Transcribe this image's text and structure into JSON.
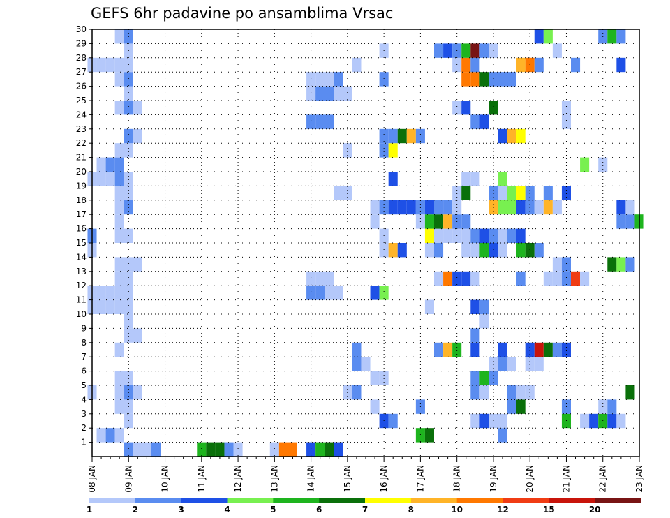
{
  "chart_data": {
    "type": "heatmap",
    "title": "GEFS 6hr padavine po ansamblima Vrsac",
    "xlabel": "",
    "ylabel": "",
    "x_start": "08 JAN 00Z",
    "x_end": "23 JAN 00Z",
    "x_step": "6 hours",
    "x_ticks": [
      "08 JAN",
      "09 JAN",
      "10 JAN",
      "11 JAN",
      "12 JAN",
      "13 JAN",
      "14 JAN",
      "15 JAN",
      "16 JAN",
      "17 JAN",
      "18 JAN",
      "19 JAN",
      "20 JAN",
      "21 JAN",
      "22 JAN",
      "23 JAN"
    ],
    "y_ticks": [
      "1",
      "2",
      "3",
      "4",
      "5",
      "6",
      "7",
      "8",
      "9",
      "10",
      "11",
      "12",
      "13",
      "14",
      "15",
      "16",
      "17",
      "18",
      "19",
      "20",
      "21",
      "22",
      "23",
      "24",
      "25",
      "26",
      "27",
      "28",
      "29",
      "30"
    ],
    "ylim": [
      0,
      30
    ],
    "grid": true,
    "colorbar": {
      "position": "bottom",
      "levels": [
        "1",
        "2",
        "3",
        "4",
        "5",
        "6",
        "7",
        "8",
        "10",
        "12",
        "15",
        "20"
      ],
      "colors": [
        "#b4c8fa",
        "#5a8cf0",
        "#1e50e6",
        "#78f050",
        "#1eb41e",
        "#0a700a",
        "#ffff00",
        "#ffb428",
        "#ff7800",
        "#f03c14",
        "#c8140a",
        "#781414"
      ]
    },
    "cells": [
      [
        "09 JAN 00Z",
        0,
        2
      ],
      [
        "09 JAN 06Z",
        0,
        1
      ],
      [
        "09 JAN 12Z",
        0,
        1
      ],
      [
        "09 JAN 18Z",
        0,
        2
      ],
      [
        "11 JAN 00Z",
        0,
        5
      ],
      [
        "11 JAN 06Z",
        0,
        6
      ],
      [
        "11 JAN 12Z",
        0,
        6
      ],
      [
        "11 JAN 18Z",
        0,
        2
      ],
      [
        "12 JAN 00Z",
        0,
        1
      ],
      [
        "13 JAN 00Z",
        0,
        1
      ],
      [
        "13 JAN 06Z",
        0,
        9
      ],
      [
        "13 JAN 12Z",
        0,
        9
      ],
      [
        "14 JAN 00Z",
        0,
        3
      ],
      [
        "14 JAN 06Z",
        0,
        5
      ],
      [
        "14 JAN 12Z",
        0,
        6
      ],
      [
        "14 JAN 18Z",
        0,
        3
      ],
      [
        "08 JAN 06Z",
        1,
        1
      ],
      [
        "08 JAN 12Z",
        1,
        2
      ],
      [
        "08 JAN 18Z",
        1,
        1
      ],
      [
        "17 JAN 00Z",
        1,
        5
      ],
      [
        "17 JAN 06Z",
        1,
        6
      ],
      [
        "19 JAN 06Z",
        1,
        2
      ],
      [
        "18 JAN 12Z",
        2,
        1
      ],
      [
        "18 JAN 18Z",
        2,
        3
      ],
      [
        "19 JAN 00Z",
        2,
        1
      ],
      [
        "19 JAN 06Z",
        2,
        1
      ],
      [
        "21 JAN 00Z",
        2,
        5
      ],
      [
        "21 JAN 12Z",
        2,
        1
      ],
      [
        "21 JAN 18Z",
        2,
        3
      ],
      [
        "22 JAN 00Z",
        2,
        5
      ],
      [
        "22 JAN 06Z",
        2,
        3
      ],
      [
        "22 JAN 12Z",
        2,
        1
      ],
      [
        "09 JAN 00Z",
        2,
        1
      ],
      [
        "16 JAN 00Z",
        2,
        3
      ],
      [
        "16 JAN 06Z",
        2,
        2
      ],
      [
        "09 JAN 00Z",
        3,
        1
      ],
      [
        "08 JAN 18Z",
        3,
        1
      ],
      [
        "17 JAN 00Z",
        3,
        2
      ],
      [
        "19 JAN 12Z",
        3,
        2
      ],
      [
        "19 JAN 18Z",
        3,
        6
      ],
      [
        "21 JAN 00Z",
        3,
        2
      ],
      [
        "22 JAN 00Z",
        3,
        1
      ],
      [
        "22 JAN 06Z",
        3,
        2
      ],
      [
        "15 JAN 18Z",
        3,
        1
      ],
      [
        "08 JAN 00Z",
        4,
        1
      ],
      [
        "08 JAN 18Z",
        4,
        1
      ],
      [
        "09 JAN 00Z",
        4,
        2
      ],
      [
        "09 JAN 06Z",
        4,
        1
      ],
      [
        "15 JAN 00Z",
        4,
        1
      ],
      [
        "15 JAN 06Z",
        4,
        2
      ],
      [
        "18 JAN 12Z",
        4,
        2
      ],
      [
        "18 JAN 18Z",
        4,
        1
      ],
      [
        "19 JAN 12Z",
        4,
        2
      ],
      [
        "19 JAN 18Z",
        4,
        1
      ],
      [
        "20 JAN 00Z",
        4,
        1
      ],
      [
        "22 JAN 18Z",
        4,
        6
      ],
      [
        "08 JAN 18Z",
        5,
        1
      ],
      [
        "09 JAN 00Z",
        5,
        1
      ],
      [
        "15 JAN 18Z",
        5,
        1
      ],
      [
        "16 JAN 00Z",
        5,
        1
      ],
      [
        "18 JAN 12Z",
        5,
        2
      ],
      [
        "18 JAN 18Z",
        5,
        5
      ],
      [
        "19 JAN 00Z",
        5,
        2
      ],
      [
        "15 JAN 06Z",
        6,
        2
      ],
      [
        "15 JAN 12Z",
        6,
        1
      ],
      [
        "19 JAN 00Z",
        6,
        1
      ],
      [
        "19 JAN 06Z",
        6,
        2
      ],
      [
        "19 JAN 12Z",
        6,
        1
      ],
      [
        "20 JAN 00Z",
        6,
        1
      ],
      [
        "20 JAN 06Z",
        6,
        1
      ],
      [
        "08 JAN 18Z",
        7,
        1
      ],
      [
        "15 JAN 06Z",
        7,
        2
      ],
      [
        "17 JAN 12Z",
        7,
        2
      ],
      [
        "17 JAN 18Z",
        7,
        8
      ],
      [
        "18 JAN 00Z",
        7,
        5
      ],
      [
        "18 JAN 12Z",
        7,
        3
      ],
      [
        "19 JAN 06Z",
        7,
        3
      ],
      [
        "20 JAN 00Z",
        7,
        3
      ],
      [
        "20 JAN 06Z",
        7,
        11
      ],
      [
        "20 JAN 12Z",
        7,
        6
      ],
      [
        "20 JAN 18Z",
        7,
        2
      ],
      [
        "21 JAN 00Z",
        7,
        3
      ],
      [
        "09 JAN 00Z",
        8,
        1
      ],
      [
        "09 JAN 06Z",
        8,
        1
      ],
      [
        "18 JAN 12Z",
        8,
        2
      ],
      [
        "09 JAN 00Z",
        9,
        1
      ],
      [
        "18 JAN 18Z",
        9,
        1
      ],
      [
        "08 JAN 00Z",
        10,
        1
      ],
      [
        "08 JAN 06Z",
        10,
        1
      ],
      [
        "08 JAN 12Z",
        10,
        1
      ],
      [
        "08 JAN 18Z",
        10,
        1
      ],
      [
        "09 JAN 00Z",
        10,
        1
      ],
      [
        "17 JAN 06Z",
        10,
        1
      ],
      [
        "18 JAN 12Z",
        10,
        3
      ],
      [
        "18 JAN 18Z",
        10,
        2
      ],
      [
        "08 JAN 00Z",
        11,
        1
      ],
      [
        "08 JAN 06Z",
        11,
        1
      ],
      [
        "08 JAN 12Z",
        11,
        1
      ],
      [
        "08 JAN 18Z",
        11,
        1
      ],
      [
        "09 JAN 00Z",
        11,
        1
      ],
      [
        "14 JAN 00Z",
        11,
        2
      ],
      [
        "14 JAN 06Z",
        11,
        2
      ],
      [
        "14 JAN 12Z",
        11,
        1
      ],
      [
        "14 JAN 18Z",
        11,
        1
      ],
      [
        "15 JAN 18Z",
        11,
        3
      ],
      [
        "16 JAN 00Z",
        11,
        4
      ],
      [
        "08 JAN 18Z",
        12,
        1
      ],
      [
        "09 JAN 00Z",
        12,
        1
      ],
      [
        "14 JAN 00Z",
        12,
        1
      ],
      [
        "14 JAN 06Z",
        12,
        1
      ],
      [
        "14 JAN 12Z",
        12,
        1
      ],
      [
        "17 JAN 12Z",
        12,
        1
      ],
      [
        "17 JAN 18Z",
        12,
        9
      ],
      [
        "18 JAN 00Z",
        12,
        3
      ],
      [
        "18 JAN 06Z",
        12,
        3
      ],
      [
        "18 JAN 12Z",
        12,
        1
      ],
      [
        "19 JAN 18Z",
        12,
        2
      ],
      [
        "20 JAN 12Z",
        12,
        1
      ],
      [
        "20 JAN 18Z",
        12,
        1
      ],
      [
        "21 JAN 00Z",
        12,
        2
      ],
      [
        "21 JAN 06Z",
        12,
        10
      ],
      [
        "21 JAN 12Z",
        12,
        1
      ],
      [
        "08 JAN 18Z",
        13,
        1
      ],
      [
        "09 JAN 00Z",
        13,
        1
      ],
      [
        "09 JAN 06Z",
        13,
        1
      ],
      [
        "20 JAN 18Z",
        13,
        1
      ],
      [
        "21 JAN 00Z",
        13,
        2
      ],
      [
        "22 JAN 06Z",
        13,
        6
      ],
      [
        "22 JAN 12Z",
        13,
        4
      ],
      [
        "22 JAN 18Z",
        13,
        2
      ],
      [
        "08 JAN 00Z",
        14,
        1
      ],
      [
        "16 JAN 00Z",
        14,
        1
      ],
      [
        "16 JAN 06Z",
        14,
        8
      ],
      [
        "16 JAN 12Z",
        14,
        3
      ],
      [
        "17 JAN 06Z",
        14,
        1
      ],
      [
        "17 JAN 12Z",
        14,
        2
      ],
      [
        "18 JAN 06Z",
        14,
        1
      ],
      [
        "18 JAN 12Z",
        14,
        1
      ],
      [
        "18 JAN 18Z",
        14,
        5
      ],
      [
        "19 JAN 00Z",
        14,
        3
      ],
      [
        "19 JAN 06Z",
        14,
        1
      ],
      [
        "19 JAN 18Z",
        14,
        5
      ],
      [
        "20 JAN 00Z",
        14,
        6
      ],
      [
        "20 JAN 06Z",
        14,
        2
      ],
      [
        "08 JAN 00Z",
        15,
        2
      ],
      [
        "08 JAN 18Z",
        15,
        1
      ],
      [
        "09 JAN 00Z",
        15,
        1
      ],
      [
        "16 JAN 00Z",
        15,
        1
      ],
      [
        "17 JAN 06Z",
        15,
        7
      ],
      [
        "17 JAN 12Z",
        15,
        1
      ],
      [
        "17 JAN 18Z",
        15,
        1
      ],
      [
        "18 JAN 00Z",
        15,
        1
      ],
      [
        "18 JAN 06Z",
        15,
        1
      ],
      [
        "18 JAN 12Z",
        15,
        2
      ],
      [
        "18 JAN 18Z",
        15,
        3
      ],
      [
        "19 JAN 00Z",
        15,
        2
      ],
      [
        "19 JAN 06Z",
        15,
        1
      ],
      [
        "19 JAN 12Z",
        15,
        2
      ],
      [
        "19 JAN 18Z",
        15,
        3
      ],
      [
        "08 JAN 18Z",
        16,
        1
      ],
      [
        "15 JAN 18Z",
        16,
        1
      ],
      [
        "17 JAN 00Z",
        16,
        1
      ],
      [
        "17 JAN 06Z",
        16,
        5
      ],
      [
        "17 JAN 12Z",
        16,
        6
      ],
      [
        "17 JAN 18Z",
        16,
        8
      ],
      [
        "18 JAN 00Z",
        16,
        2
      ],
      [
        "18 JAN 06Z",
        16,
        2
      ],
      [
        "22 JAN 12Z",
        16,
        2
      ],
      [
        "22 JAN 18Z",
        16,
        2
      ],
      [
        "23 JAN 00Z",
        16,
        5
      ],
      [
        "09 JAN 00Z",
        17,
        2
      ],
      [
        "08 JAN 18Z",
        17,
        1
      ],
      [
        "15 JAN 18Z",
        17,
        1
      ],
      [
        "16 JAN 00Z",
        17,
        2
      ],
      [
        "16 JAN 06Z",
        17,
        3
      ],
      [
        "16 JAN 12Z",
        17,
        3
      ],
      [
        "16 JAN 18Z",
        17,
        3
      ],
      [
        "17 JAN 00Z",
        17,
        2
      ],
      [
        "17 JAN 06Z",
        17,
        3
      ],
      [
        "17 JAN 12Z",
        17,
        2
      ],
      [
        "17 JAN 18Z",
        17,
        2
      ],
      [
        "18 JAN 00Z",
        17,
        1
      ],
      [
        "19 JAN 00Z",
        17,
        8
      ],
      [
        "19 JAN 06Z",
        17,
        4
      ],
      [
        "19 JAN 12Z",
        17,
        4
      ],
      [
        "19 JAN 18Z",
        17,
        3
      ],
      [
        "20 JAN 00Z",
        17,
        2
      ],
      [
        "20 JAN 06Z",
        17,
        1
      ],
      [
        "20 JAN 12Z",
        17,
        8
      ],
      [
        "20 JAN 18Z",
        17,
        1
      ],
      [
        "22 JAN 12Z",
        17,
        3
      ],
      [
        "22 JAN 18Z",
        17,
        1
      ],
      [
        "08 JAN 18Z",
        18,
        1
      ],
      [
        "09 JAN 00Z",
        18,
        1
      ],
      [
        "14 JAN 18Z",
        18,
        1
      ],
      [
        "15 JAN 00Z",
        18,
        1
      ],
      [
        "18 JAN 00Z",
        18,
        1
      ],
      [
        "18 JAN 06Z",
        18,
        6
      ],
      [
        "19 JAN 00Z",
        18,
        2
      ],
      [
        "19 JAN 06Z",
        18,
        1
      ],
      [
        "19 JAN 12Z",
        18,
        4
      ],
      [
        "19 JAN 18Z",
        18,
        7
      ],
      [
        "20 JAN 00Z",
        18,
        2
      ],
      [
        "20 JAN 12Z",
        18,
        2
      ],
      [
        "21 JAN 00Z",
        18,
        3
      ],
      [
        "08 JAN 00Z",
        19,
        1
      ],
      [
        "08 JAN 06Z",
        19,
        1
      ],
      [
        "08 JAN 12Z",
        19,
        1
      ],
      [
        "08 JAN 18Z",
        19,
        2
      ],
      [
        "09 JAN 00Z",
        19,
        1
      ],
      [
        "16 JAN 06Z",
        19,
        3
      ],
      [
        "18 JAN 06Z",
        19,
        1
      ],
      [
        "18 JAN 12Z",
        19,
        1
      ],
      [
        "19 JAN 06Z",
        19,
        4
      ],
      [
        "08 JAN 06Z",
        20,
        1
      ],
      [
        "08 JAN 12Z",
        20,
        2
      ],
      [
        "08 JAN 18Z",
        20,
        2
      ],
      [
        "21 JAN 12Z",
        20,
        4
      ],
      [
        "22 JAN 00Z",
        20,
        1
      ],
      [
        "08 JAN 18Z",
        21,
        1
      ],
      [
        "09 JAN 00Z",
        21,
        1
      ],
      [
        "15 JAN 00Z",
        21,
        1
      ],
      [
        "16 JAN 00Z",
        21,
        2
      ],
      [
        "16 JAN 06Z",
        21,
        7
      ],
      [
        "09 JAN 00Z",
        22,
        2
      ],
      [
        "09 JAN 06Z",
        22,
        1
      ],
      [
        "16 JAN 00Z",
        22,
        2
      ],
      [
        "16 JAN 06Z",
        22,
        2
      ],
      [
        "16 JAN 12Z",
        22,
        6
      ],
      [
        "16 JAN 18Z",
        22,
        8
      ],
      [
        "17 JAN 00Z",
        22,
        2
      ],
      [
        "19 JAN 06Z",
        22,
        3
      ],
      [
        "19 JAN 12Z",
        22,
        8
      ],
      [
        "19 JAN 18Z",
        22,
        7
      ],
      [
        "14 JAN 00Z",
        23,
        2
      ],
      [
        "14 JAN 06Z",
        23,
        2
      ],
      [
        "14 JAN 12Z",
        23,
        2
      ],
      [
        "18 JAN 12Z",
        23,
        2
      ],
      [
        "18 JAN 18Z",
        23,
        3
      ],
      [
        "21 JAN 00Z",
        23,
        1
      ],
      [
        "08 JAN 18Z",
        24,
        1
      ],
      [
        "09 JAN 00Z",
        24,
        2
      ],
      [
        "09 JAN 06Z",
        24,
        1
      ],
      [
        "18 JAN 00Z",
        24,
        1
      ],
      [
        "18 JAN 06Z",
        24,
        3
      ],
      [
        "19 JAN 00Z",
        24,
        6
      ],
      [
        "21 JAN 00Z",
        24,
        1
      ],
      [
        "09 JAN 00Z",
        25,
        1
      ],
      [
        "14 JAN 00Z",
        25,
        1
      ],
      [
        "14 JAN 06Z",
        25,
        2
      ],
      [
        "14 JAN 12Z",
        25,
        2
      ],
      [
        "14 JAN 18Z",
        25,
        1
      ],
      [
        "15 JAN 00Z",
        25,
        1
      ],
      [
        "08 JAN 18Z",
        26,
        1
      ],
      [
        "09 JAN 00Z",
        26,
        2
      ],
      [
        "14 JAN 00Z",
        26,
        1
      ],
      [
        "14 JAN 06Z",
        26,
        1
      ],
      [
        "14 JAN 12Z",
        26,
        1
      ],
      [
        "14 JAN 18Z",
        26,
        2
      ],
      [
        "16 JAN 00Z",
        26,
        2
      ],
      [
        "18 JAN 06Z",
        26,
        9
      ],
      [
        "18 JAN 12Z",
        26,
        9
      ],
      [
        "18 JAN 18Z",
        26,
        6
      ],
      [
        "19 JAN 00Z",
        26,
        2
      ],
      [
        "19 JAN 06Z",
        26,
        2
      ],
      [
        "19 JAN 12Z",
        26,
        2
      ],
      [
        "08 JAN 00Z",
        27,
        1
      ],
      [
        "08 JAN 06Z",
        27,
        1
      ],
      [
        "08 JAN 12Z",
        27,
        1
      ],
      [
        "08 JAN 18Z",
        27,
        1
      ],
      [
        "09 JAN 00Z",
        27,
        1
      ],
      [
        "15 JAN 06Z",
        27,
        1
      ],
      [
        "18 JAN 00Z",
        27,
        1
      ],
      [
        "18 JAN 06Z",
        27,
        9
      ],
      [
        "18 JAN 12Z",
        27,
        2
      ],
      [
        "19 JAN 18Z",
        27,
        8
      ],
      [
        "20 JAN 00Z",
        27,
        9
      ],
      [
        "20 JAN 06Z",
        27,
        2
      ],
      [
        "21 JAN 06Z",
        27,
        2
      ],
      [
        "22 JAN 12Z",
        27,
        3
      ],
      [
        "09 JAN 00Z",
        28,
        1
      ],
      [
        "16 JAN 00Z",
        28,
        1
      ],
      [
        "17 JAN 12Z",
        28,
        2
      ],
      [
        "17 JAN 18Z",
        28,
        3
      ],
      [
        "18 JAN 00Z",
        28,
        2
      ],
      [
        "18 JAN 06Z",
        28,
        5
      ],
      [
        "18 JAN 12Z",
        28,
        12
      ],
      [
        "18 JAN 18Z",
        28,
        2
      ],
      [
        "19 JAN 00Z",
        28,
        1
      ],
      [
        "20 JAN 18Z",
        28,
        1
      ],
      [
        "08 JAN 18Z",
        29,
        1
      ],
      [
        "09 JAN 00Z",
        29,
        2
      ],
      [
        "20 JAN 06Z",
        29,
        3
      ],
      [
        "20 JAN 12Z",
        29,
        4
      ],
      [
        "22 JAN 00Z",
        29,
        2
      ],
      [
        "22 JAN 06Z",
        29,
        5
      ],
      [
        "22 JAN 12Z",
        29,
        2
      ]
    ]
  }
}
